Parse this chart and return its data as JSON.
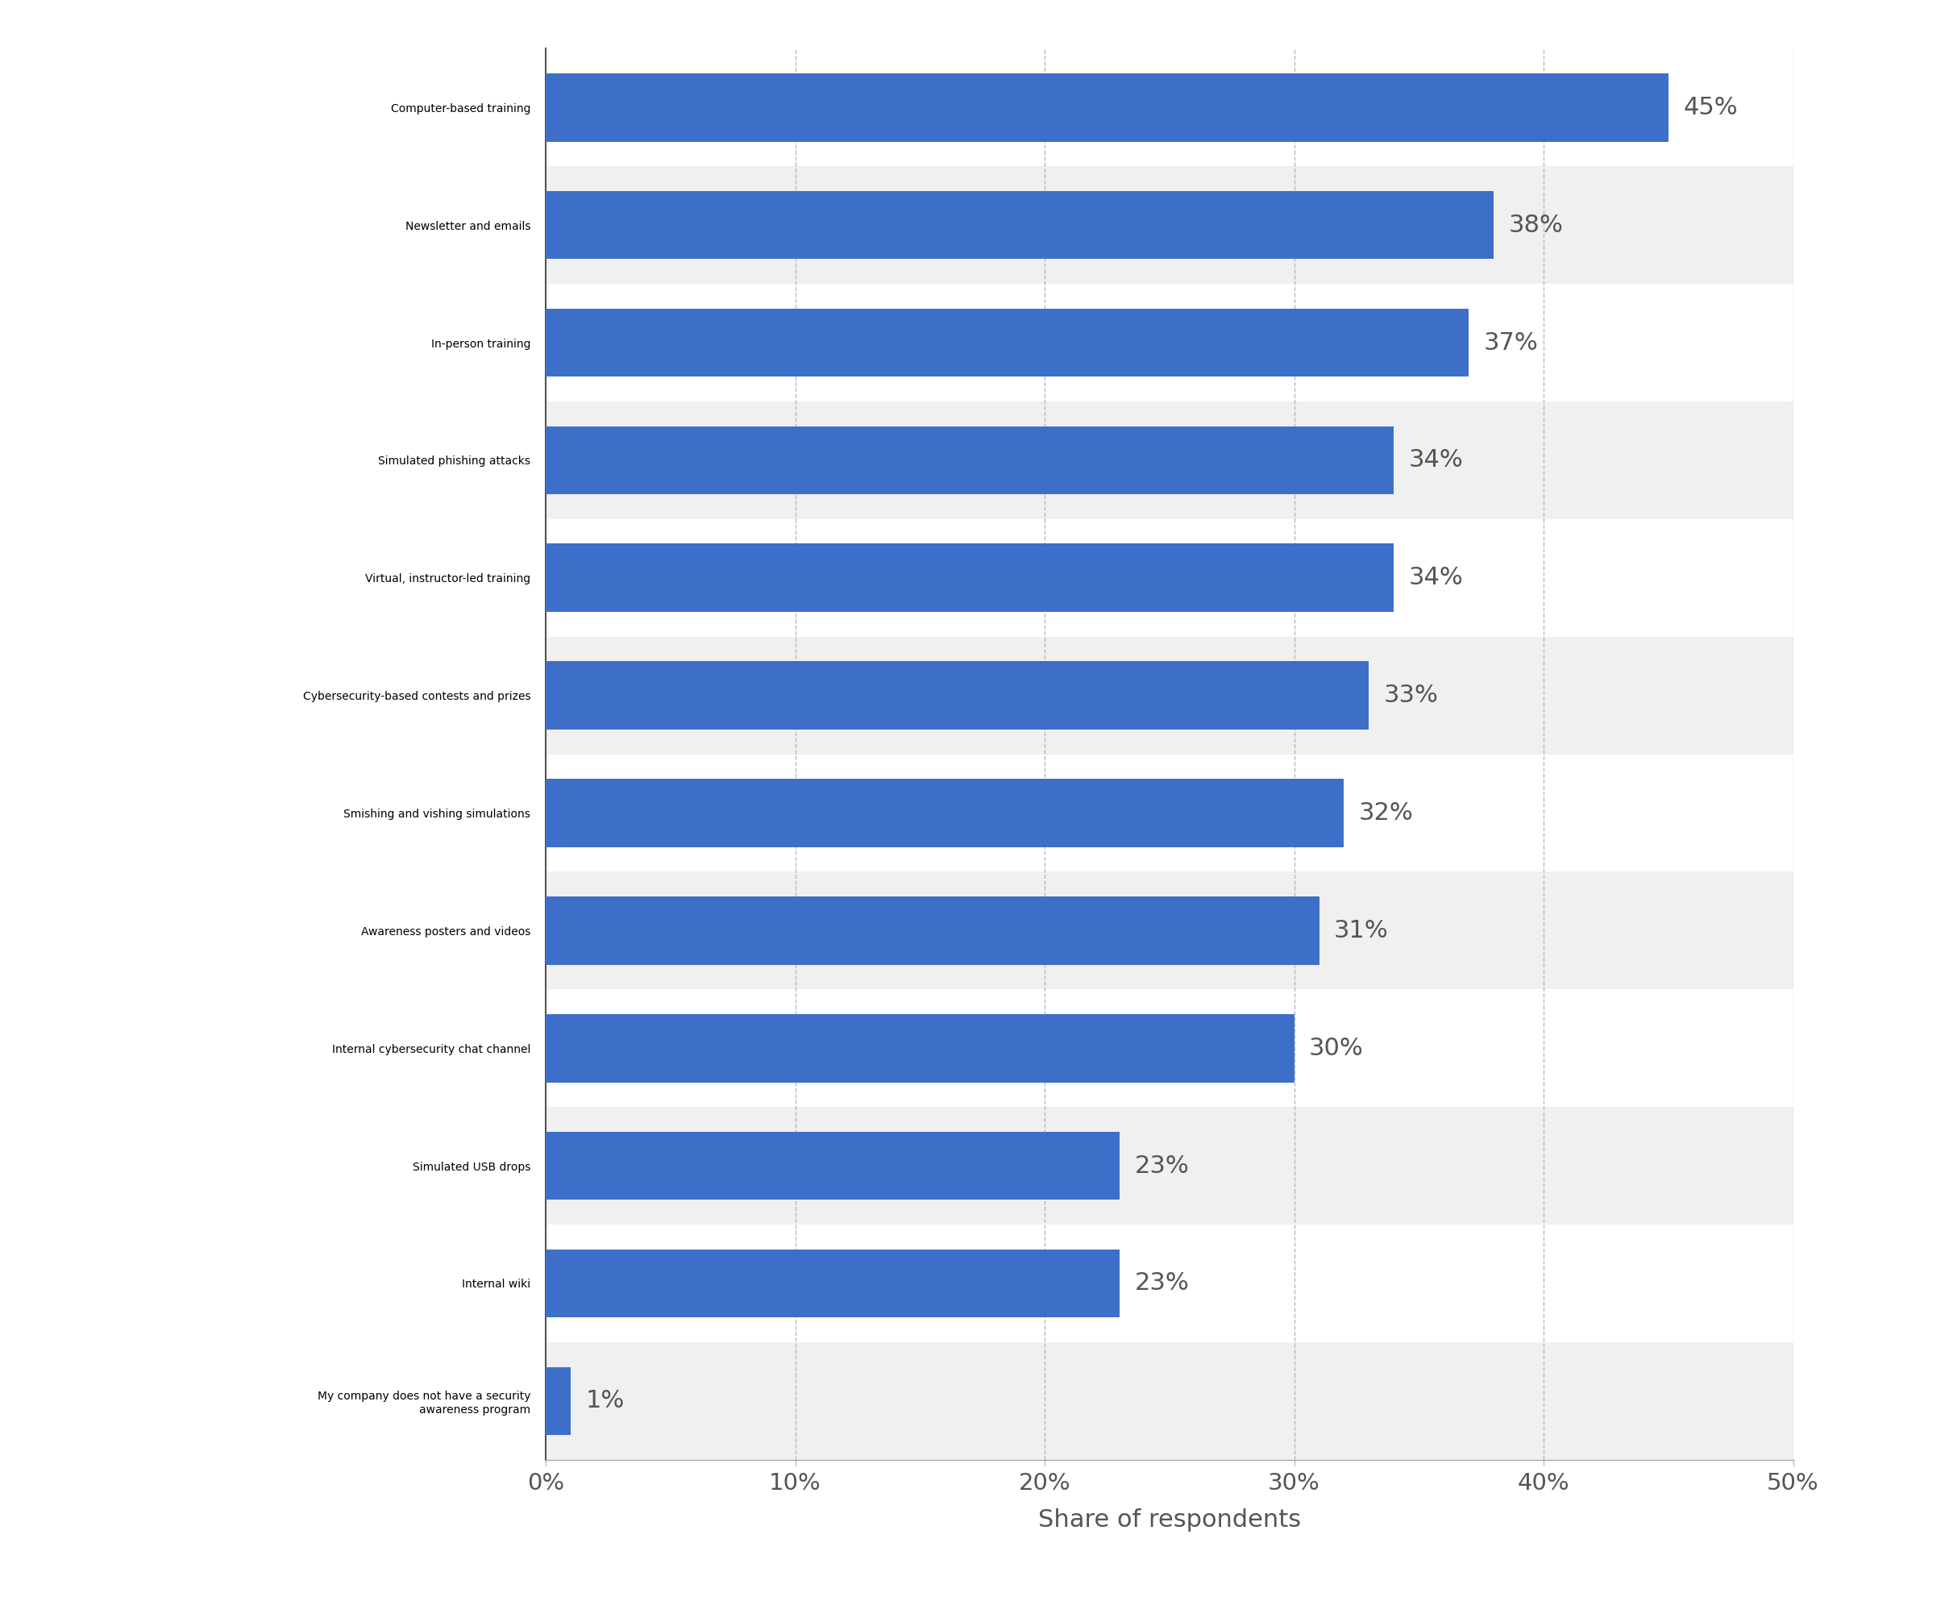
{
  "categories": [
    "My company does not have a security\nawareness program",
    "Internal wiki",
    "Simulated USB drops",
    "Internal cybersecurity chat channel",
    "Awareness posters and videos",
    "Smishing and vishing simulations",
    "Cybersecurity-based contests and prizes",
    "Virtual, instructor-led training",
    "Simulated phishing attacks",
    "In-person training",
    "Newsletter and emails",
    "Computer-based training"
  ],
  "values": [
    1,
    23,
    23,
    30,
    31,
    32,
    33,
    34,
    34,
    37,
    38,
    45
  ],
  "bar_color": "#3d6fc8",
  "background_color": "#ffffff",
  "row_alt_color": "#f0f0f0",
  "row_main_color": "#ffffff",
  "xlabel": "Share of respondents",
  "xlim": [
    0,
    50
  ],
  "xticks": [
    0,
    10,
    20,
    30,
    40,
    50
  ],
  "xticklabels": [
    "0%",
    "10%",
    "20%",
    "30%",
    "40%",
    "50%"
  ],
  "bar_height": 0.58,
  "label_fontsize": 22,
  "tick_fontsize": 21,
  "xlabel_fontsize": 22,
  "value_label_fontsize": 22,
  "grid_color": "#aaaaaa",
  "grid_linestyle": "--",
  "grid_alpha": 0.8,
  "text_color": "#555555"
}
